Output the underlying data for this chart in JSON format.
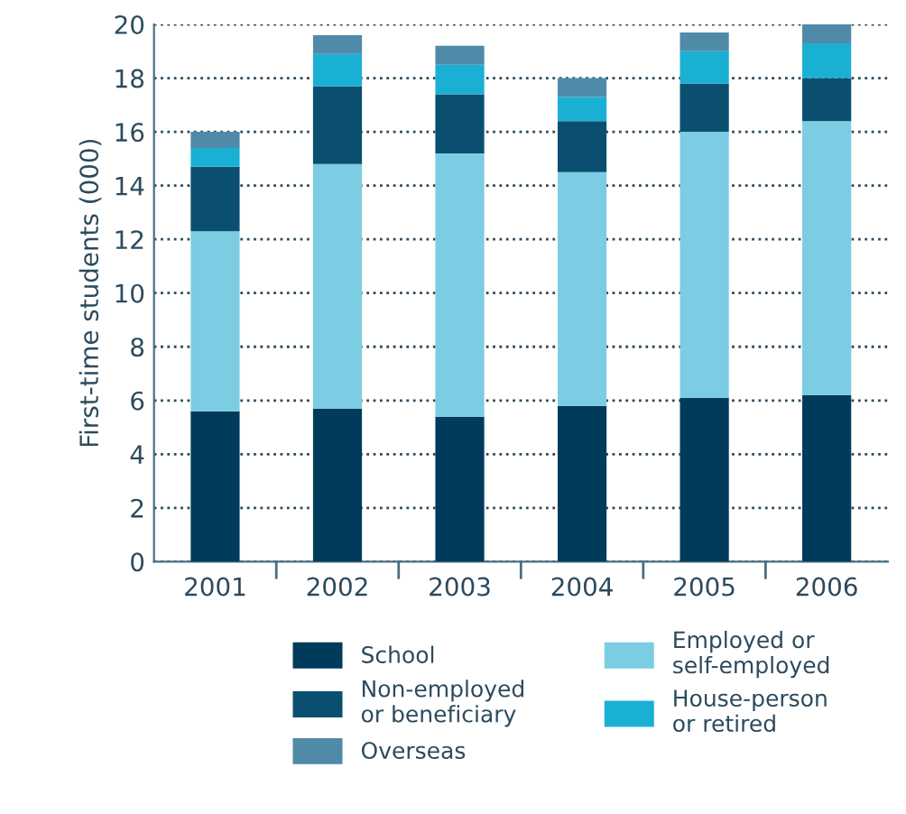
{
  "chart_data": {
    "type": "bar",
    "stacked": true,
    "ylabel": "First-time students (000)",
    "categories": [
      "2001",
      "2002",
      "2003",
      "2004",
      "2005",
      "2006"
    ],
    "series": [
      {
        "name": "School",
        "color": "#003b5c",
        "values": [
          5.6,
          5.7,
          5.4,
          5.8,
          6.1,
          6.2
        ]
      },
      {
        "name": "Employed or\nself-employed",
        "color": "#7ccde3",
        "values": [
          6.7,
          9.1,
          9.8,
          8.7,
          9.9,
          10.2
        ]
      },
      {
        "name": "Non-employed\nor beneficiary",
        "color": "#0a4f70",
        "values": [
          2.4,
          2.9,
          2.2,
          1.9,
          1.8,
          1.6
        ]
      },
      {
        "name": "House-person\nor retired",
        "color": "#1ab0d4",
        "values": [
          0.7,
          1.2,
          1.1,
          0.9,
          1.2,
          1.3
        ]
      },
      {
        "name": "Overseas",
        "color": "#4f8aa8",
        "values": [
          0.6,
          0.7,
          0.7,
          0.7,
          0.7,
          0.7
        ]
      }
    ],
    "ylim": [
      0,
      20
    ],
    "yticks": [
      0,
      2,
      4,
      6,
      8,
      10,
      12,
      14,
      16,
      18,
      20
    ],
    "grid": "y",
    "legend": "bottom"
  }
}
